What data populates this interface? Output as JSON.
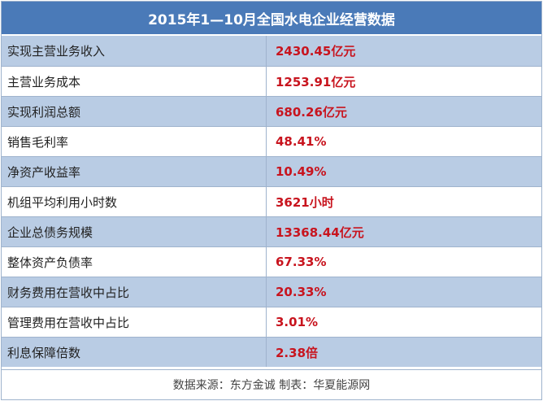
{
  "title": "2015年1—10月全国水电企业经营数据",
  "rows": [
    {
      "label": "实现主营业务收入",
      "value": "2430.45亿元"
    },
    {
      "label": "主营业务成本",
      "value": "1253.91亿元"
    },
    {
      "label": "实现利润总额",
      "value": "680.26亿元"
    },
    {
      "label": "销售毛利率",
      "value": "48.41%"
    },
    {
      "label": "净资产收益率",
      "value": "10.49%"
    },
    {
      "label": "机组平均利用小时数",
      "value": "3621小时"
    },
    {
      "label": "企业总债务规模",
      "value": "13368.44亿元"
    },
    {
      "label": "整体资产负债率",
      "value": "67.33%"
    },
    {
      "label": "财务费用在营收中占比",
      "value": "20.33%"
    },
    {
      "label": "管理费用在营收中占比",
      "value": "3.01%"
    },
    {
      "label": "利息保障倍数",
      "value": "2.38倍"
    }
  ],
  "footer": "数据来源：东方金诚 制表：华夏能源网",
  "colors": {
    "header_bg": "#4a7ab8",
    "alt_row_bg": "#b9cce4",
    "value_text": "#c8141e"
  }
}
